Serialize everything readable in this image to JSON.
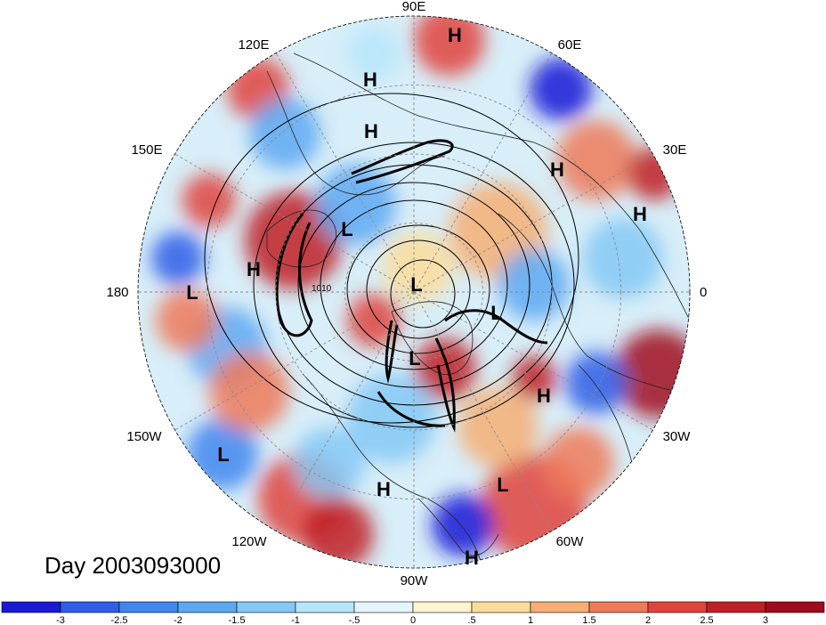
{
  "caption": "Day 2003093000",
  "longitude_labels": [
    "90E",
    "60E",
    "30E",
    "0",
    "30W",
    "60W",
    "90W",
    "120W",
    "150W",
    "180",
    "150E",
    "120E"
  ],
  "isobar_label": "1010",
  "pressure_centers": [
    {
      "type": "H"
    },
    {
      "type": "H"
    },
    {
      "type": "H"
    },
    {
      "type": "H"
    },
    {
      "type": "H"
    },
    {
      "type": "L"
    },
    {
      "type": "H"
    },
    {
      "type": "L"
    },
    {
      "type": "L"
    },
    {
      "type": "L"
    },
    {
      "type": "L"
    },
    {
      "type": "H"
    },
    {
      "type": "L"
    },
    {
      "type": "H"
    },
    {
      "type": "L"
    },
    {
      "type": "H"
    }
  ],
  "colorbar": {
    "ticks": [
      "-3",
      "-2.5",
      "-2",
      "-1.5",
      "-1",
      "-.5",
      "0",
      ".5",
      "1",
      "1.5",
      "2",
      "2.5",
      "3"
    ],
    "colors": [
      "#1a1ad6",
      "#2f5ee8",
      "#3f86ef",
      "#5ea8f2",
      "#84c8f6",
      "#b6e6fa",
      "#e4f6fd",
      "#fdf5cf",
      "#fbdc9a",
      "#f6ae74",
      "#ee7a5a",
      "#e0433c",
      "#c01f27",
      "#a00c1d"
    ]
  },
  "map_palette": {
    "ocean_base": "#d8eef8",
    "land_line": "#222222",
    "isobar": "#000000"
  }
}
